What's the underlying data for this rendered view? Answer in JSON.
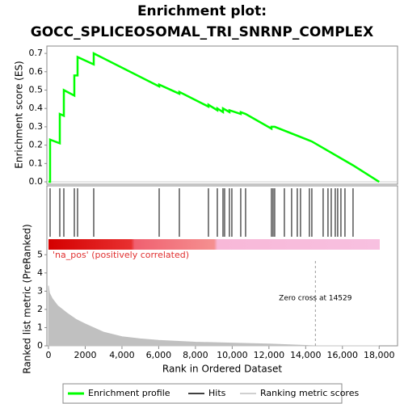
{
  "chart_data": [
    {
      "type": "line",
      "title": "Enrichment plot:",
      "subtitle": "GOCC_SPLICEOSOMAL_TRI_SNRNP_COMPLEX",
      "ylabel": "Enrichment score (ES)",
      "xlim": [
        0,
        19000
      ],
      "ylim": [
        -0.013,
        0.74
      ],
      "yticks": [
        {
          "value": 0,
          "label": "0.0"
        },
        0.1,
        0.2,
        0.3,
        0.4,
        0.5,
        0.6,
        0.7
      ],
      "series": [
        {
          "name": "Enrichment profile",
          "color": "#00ff00",
          "x": [
            0,
            88,
            88,
            616,
            616,
            836,
            836,
            1407,
            1407,
            1583,
            1583,
            2463,
            2463,
            6025,
            6025,
            7124,
            7124,
            8707,
            8707,
            9191,
            9191,
            9499,
            9499,
            9850,
            9850,
            10466,
            10466,
            10730,
            12137,
            12137,
            12313,
            14336,
            16579,
            18000
          ],
          "values": [
            0,
            0,
            0.23,
            0.21,
            0.37,
            0.36,
            0.5,
            0.47,
            0.58,
            0.58,
            0.68,
            0.64,
            0.7,
            0.52,
            0.53,
            0.48,
            0.49,
            0.41,
            0.42,
            0.39,
            0.4,
            0.38,
            0.4,
            0.38,
            0.39,
            0.37,
            0.38,
            0.37,
            0.29,
            0.3,
            0.3,
            0.22,
            0.09,
            0
          ]
        }
      ],
      "hits": {
        "name": "Hits",
        "color": "#000000",
        "x": [
          88,
          616,
          836,
          1407,
          1583,
          2463,
          6025,
          7124,
          8707,
          9191,
          9499,
          9587,
          9850,
          9982,
          10466,
          10730,
          12137,
          12225,
          12313,
          12841,
          13236,
          13544,
          13720,
          14204,
          14336,
          14952,
          15215,
          15391,
          15611,
          15743,
          15919,
          16139,
          16579
        ]
      }
    },
    {
      "type": "area",
      "xlabel": "Rank in Ordered Dataset",
      "ylabel": "Ranked list metric (PreRanked)",
      "xlim": [
        0,
        19000
      ],
      "ylim": [
        0,
        5.1
      ],
      "xticks": [
        0,
        2000,
        {
          "value": 4000,
          "label": "4,000"
        },
        {
          "value": 6000,
          "label": "6,000"
        },
        {
          "value": 8000,
          "label": "8,000"
        },
        {
          "value": 10000,
          "label": "10,000"
        },
        {
          "value": 12000,
          "label": "12,000"
        },
        {
          "value": 14000,
          "label": "14,000"
        },
        {
          "value": 16000,
          "label": "16,000"
        },
        {
          "value": 18000,
          "label": "18,000"
        }
      ],
      "yticks": [
        0,
        1,
        2,
        3,
        4,
        5
      ],
      "series": [
        {
          "name": "Ranking metric scores",
          "color": "#c0c0c0",
          "x": [
            0,
            50,
            200,
            500,
            1000,
            1500,
            2000,
            3000,
            4000,
            5000,
            6000,
            8000,
            10000,
            12000,
            14529,
            18000
          ],
          "values": [
            3.3,
            2.9,
            2.6,
            2.2,
            1.8,
            1.45,
            1.2,
            0.75,
            0.5,
            0.38,
            0.3,
            0.2,
            0.15,
            0.1,
            0,
            0
          ]
        }
      ],
      "annotation": "'na_pos' (positively correlated)",
      "zero_cross": 14529,
      "zero_cross_label": "Zero cross at 14529"
    }
  ]
}
